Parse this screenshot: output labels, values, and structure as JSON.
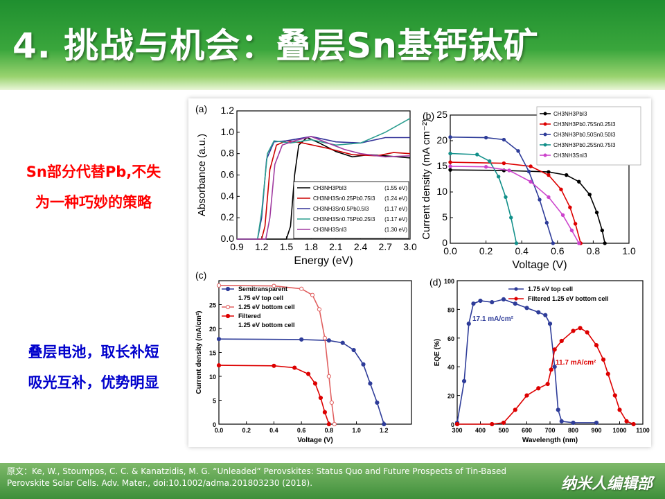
{
  "slide": {
    "title": "4. 挑战与机会：叠层Sn基钙钛矿",
    "note1_line1": "Sn部分代替Pb,不失",
    "note1_line2": "为一种巧妙的策略",
    "note2_line1": "叠层电池，取长补短",
    "note2_line2": "吸光互补，优势明显",
    "citation": "原文：Ke, W., Stoumpos, C. C. & Kanatzidis, M. G. “Unleaded” Perovskites: Status Quo and Future Prospects of Tin-Based Perovskite Solar Cells. Adv. Mater., doi:10.1002/adma.201803230 (2018).",
    "brand": "纳米人编辑部"
  },
  "chart_data": [
    {
      "panel": "(a)",
      "type": "line",
      "xlabel": "Energy (eV)",
      "ylabel": "Absorbance (a.u.)",
      "xlim": [
        0.9,
        3.0
      ],
      "ylim": [
        0.0,
        1.2
      ],
      "xticks": [
        "0.9",
        "1.2",
        "1.5",
        "1.8",
        "2.1",
        "2.4",
        "2.7",
        "3.0"
      ],
      "yticks": [
        "0.0",
        "0.2",
        "0.4",
        "0.6",
        "0.8",
        "1.0",
        "1.2"
      ],
      "legend_position": "bottom-right",
      "series": [
        {
          "name": "CH3NH3PbI3",
          "label": "(1.55 eV)",
          "color": "#000000",
          "points": [
            [
              0.9,
              0.0
            ],
            [
              1.5,
              0.0
            ],
            [
              1.55,
              0.12
            ],
            [
              1.6,
              0.6
            ],
            [
              1.65,
              0.88
            ],
            [
              1.75,
              0.95
            ],
            [
              1.9,
              0.9
            ],
            [
              2.1,
              0.82
            ],
            [
              2.3,
              0.77
            ],
            [
              2.5,
              0.79
            ],
            [
              2.7,
              0.78
            ],
            [
              3.0,
              0.76
            ]
          ]
        },
        {
          "name": "CH3NH3Sn0.25Pb0.75I3",
          "label": "(1.24 eV)",
          "color": "#cc0000",
          "points": [
            [
              0.9,
              0.0
            ],
            [
              1.2,
              0.0
            ],
            [
              1.24,
              0.12
            ],
            [
              1.3,
              0.65
            ],
            [
              1.38,
              0.88
            ],
            [
              1.5,
              0.92
            ],
            [
              1.7,
              0.9
            ],
            [
              2.0,
              0.85
            ],
            [
              2.3,
              0.79
            ],
            [
              2.6,
              0.78
            ],
            [
              2.8,
              0.81
            ],
            [
              3.0,
              0.8
            ]
          ]
        },
        {
          "name": "CH3NH3Sn0.5Pb0.5I3",
          "label": "(1.17 eV)",
          "color": "#333399",
          "points": [
            [
              0.9,
              0.0
            ],
            [
              1.15,
              0.0
            ],
            [
              1.2,
              0.2
            ],
            [
              1.26,
              0.75
            ],
            [
              1.35,
              0.91
            ],
            [
              1.5,
              0.92
            ],
            [
              1.8,
              0.96
            ],
            [
              2.1,
              0.91
            ],
            [
              2.4,
              0.9
            ],
            [
              2.7,
              0.95
            ],
            [
              3.0,
              0.95
            ]
          ]
        },
        {
          "name": "CH3NH3Sn0.75Pb0.25I3",
          "label": "(1.17 eV)",
          "color": "#2a9d8f",
          "points": [
            [
              0.9,
              0.0
            ],
            [
              1.15,
              0.0
            ],
            [
              1.2,
              0.25
            ],
            [
              1.27,
              0.8
            ],
            [
              1.35,
              0.92
            ],
            [
              1.55,
              0.9
            ],
            [
              1.8,
              0.93
            ],
            [
              2.1,
              0.88
            ],
            [
              2.4,
              0.9
            ],
            [
              2.7,
              1.0
            ],
            [
              3.0,
              1.13
            ]
          ]
        },
        {
          "name": "CH3NH3SnI3",
          "label": "(1.30 eV)",
          "color": "#a03aa0",
          "points": [
            [
              0.9,
              0.0
            ],
            [
              1.25,
              0.0
            ],
            [
              1.3,
              0.2
            ],
            [
              1.36,
              0.7
            ],
            [
              1.45,
              0.88
            ],
            [
              1.6,
              0.92
            ],
            [
              1.8,
              0.96
            ],
            [
              2.0,
              0.9
            ],
            [
              2.2,
              0.84
            ],
            [
              2.4,
              0.8
            ],
            [
              2.7,
              0.77
            ],
            [
              3.0,
              0.78
            ]
          ]
        }
      ]
    },
    {
      "panel": "(b)",
      "type": "line",
      "xlabel": "Voltage (V)",
      "ylabel": "Current density (mA cm⁻²)",
      "xlim": [
        0.0,
        1.0
      ],
      "ylim": [
        0,
        25
      ],
      "xticks": [
        "0.0",
        "0.2",
        "0.4",
        "0.6",
        "0.8",
        "1.0"
      ],
      "yticks": [
        "0",
        "5",
        "10",
        "15",
        "20",
        "25"
      ],
      "legend_position": "top-right",
      "series": [
        {
          "name": "CH3NH3PbI3",
          "color": "#000000",
          "points": [
            [
              0.0,
              14.3
            ],
            [
              0.3,
              14.2
            ],
            [
              0.55,
              13.9
            ],
            [
              0.65,
              13.3
            ],
            [
              0.72,
              12.0
            ],
            [
              0.78,
              9.5
            ],
            [
              0.82,
              6.0
            ],
            [
              0.85,
              2.5
            ],
            [
              0.865,
              0.0
            ]
          ]
        },
        {
          "name": "CH3NH3Pb0.75Sn0.25I3",
          "color": "#dd0000",
          "points": [
            [
              0.0,
              15.8
            ],
            [
              0.3,
              15.6
            ],
            [
              0.45,
              15.0
            ],
            [
              0.55,
              13.3
            ],
            [
              0.62,
              10.5
            ],
            [
              0.67,
              7.0
            ],
            [
              0.7,
              3.8
            ],
            [
              0.73,
              0.0
            ]
          ]
        },
        {
          "name": "CH3NH3Pb0.50Sn0.50I3",
          "color": "#2e3c99",
          "points": [
            [
              0.0,
              20.7
            ],
            [
              0.2,
              20.6
            ],
            [
              0.3,
              20.2
            ],
            [
              0.38,
              18.0
            ],
            [
              0.44,
              14.0
            ],
            [
              0.5,
              8.5
            ],
            [
              0.54,
              4.0
            ],
            [
              0.575,
              0.0
            ]
          ]
        },
        {
          "name": "CH3NH3Pb0.25Sn0.75I3",
          "color": "#12908a",
          "points": [
            [
              0.0,
              17.5
            ],
            [
              0.15,
              17.3
            ],
            [
              0.22,
              16.0
            ],
            [
              0.27,
              13.0
            ],
            [
              0.31,
              9.0
            ],
            [
              0.34,
              5.0
            ],
            [
              0.37,
              0.0
            ]
          ]
        },
        {
          "name": "CH3NH3SnI3",
          "color": "#cc44cc",
          "points": [
            [
              0.0,
              15.0
            ],
            [
              0.2,
              14.9
            ],
            [
              0.33,
              14.2
            ],
            [
              0.45,
              12.0
            ],
            [
              0.55,
              9.0
            ],
            [
              0.63,
              5.5
            ],
            [
              0.68,
              2.5
            ],
            [
              0.72,
              0.0
            ]
          ]
        }
      ]
    },
    {
      "panel": "(c)",
      "type": "line",
      "xlabel": "Voltage (V)",
      "ylabel": "Current density (mA/cm²)",
      "xlim": [
        0.0,
        1.4
      ],
      "ylim": [
        0,
        30
      ],
      "xticks": [
        "0.0",
        "0.2",
        "0.4",
        "0.6",
        "0.8",
        "1.0",
        "1.2"
      ],
      "yticks": [
        "0",
        "5",
        "10",
        "15",
        "20",
        "25"
      ],
      "legend_position": "top-left",
      "legend_extra": [
        "1.75 eV top cell",
        "1.25 eV bottom cell"
      ],
      "series": [
        {
          "name": "Semitransparent",
          "color": "#2e3c99",
          "points": [
            [
              0.0,
              17.8
            ],
            [
              0.6,
              17.7
            ],
            [
              0.8,
              17.5
            ],
            [
              0.9,
              17.0
            ],
            [
              0.98,
              15.5
            ],
            [
              1.05,
              12.5
            ],
            [
              1.1,
              8.5
            ],
            [
              1.15,
              4.5
            ],
            [
              1.2,
              0.0
            ]
          ]
        },
        {
          "name": "1.25 eV bottom cell",
          "color": "#e06060",
          "points": [
            [
              0.0,
              29.0
            ],
            [
              0.4,
              28.9
            ],
            [
              0.6,
              28.3
            ],
            [
              0.68,
              27.0
            ],
            [
              0.73,
              24.0
            ],
            [
              0.77,
              18.0
            ],
            [
              0.8,
              10.0
            ],
            [
              0.82,
              4.5
            ],
            [
              0.84,
              0.0
            ]
          ]
        },
        {
          "name": "Filtered",
          "color": "#dd0000",
          "points": [
            [
              0.0,
              12.3
            ],
            [
              0.4,
              12.2
            ],
            [
              0.55,
              11.8
            ],
            [
              0.65,
              10.5
            ],
            [
              0.7,
              8.5
            ],
            [
              0.74,
              5.5
            ],
            [
              0.77,
              2.5
            ],
            [
              0.8,
              0.0
            ]
          ]
        }
      ],
      "annotations": [
        "Semitransparent",
        "1.75 eV top cell",
        "1.25 eV bottom cell",
        "Filtered",
        "1.25 eV bottom cell"
      ]
    },
    {
      "panel": "(d)",
      "type": "line",
      "xlabel": "Wavelength (nm)",
      "ylabel": "EQE (%)",
      "xlim": [
        300,
        1100
      ],
      "ylim": [
        0,
        100
      ],
      "xticks": [
        "300",
        "400",
        "500",
        "600",
        "700",
        "800",
        "900",
        "1000",
        "1100"
      ],
      "yticks": [
        "0",
        "20",
        "40",
        "60",
        "80",
        "100"
      ],
      "legend_position": "top-right",
      "annotations": [
        "17.1 mA/cm²",
        "11.7 mA/cm²"
      ],
      "series": [
        {
          "name": "1.75 eV top cell",
          "color": "#2e3c99",
          "points": [
            [
              300,
              1
            ],
            [
              330,
              30
            ],
            [
              350,
              70
            ],
            [
              370,
              84
            ],
            [
              400,
              86
            ],
            [
              450,
              85
            ],
            [
              500,
              87
            ],
            [
              550,
              84
            ],
            [
              600,
              81
            ],
            [
              650,
              78
            ],
            [
              680,
              76
            ],
            [
              700,
              70
            ],
            [
              720,
              40
            ],
            [
              735,
              10
            ],
            [
              750,
              2
            ],
            [
              800,
              1
            ],
            [
              900,
              1
            ]
          ]
        },
        {
          "name": "Filtered 1.25 eV bottom cell",
          "color": "#dd0000",
          "points": [
            [
              300,
              0
            ],
            [
              450,
              0
            ],
            [
              500,
              1
            ],
            [
              550,
              10
            ],
            [
              600,
              20
            ],
            [
              650,
              25
            ],
            [
              690,
              28
            ],
            [
              705,
              38
            ],
            [
              720,
              52
            ],
            [
              750,
              58
            ],
            [
              800,
              65
            ],
            [
              830,
              67
            ],
            [
              860,
              64
            ],
            [
              900,
              55
            ],
            [
              930,
              45
            ],
            [
              950,
              35
            ],
            [
              980,
              20
            ],
            [
              1000,
              10
            ],
            [
              1030,
              2
            ],
            [
              1060,
              0
            ]
          ]
        }
      ]
    }
  ]
}
